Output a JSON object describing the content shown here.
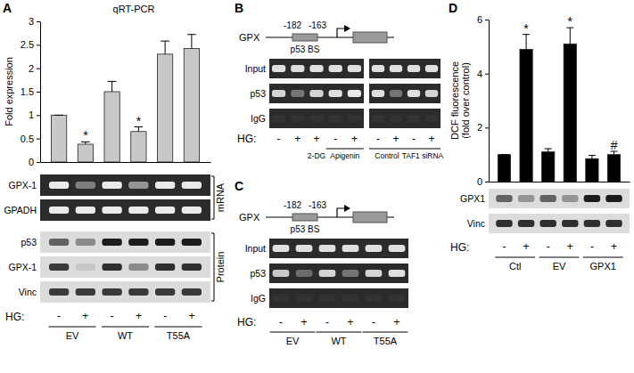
{
  "chart_data": [
    {
      "type": "bar",
      "label": "A",
      "title": "qRT-PCR",
      "y_label": "Fold expression",
      "x_label": "HG:",
      "categories": [
        "-",
        "+",
        "-",
        "+",
        "-",
        "+"
      ],
      "groups": [
        "EV",
        "WT",
        "T55A"
      ],
      "values": [
        1,
        0.38,
        1.5,
        0.65,
        2.3,
        2.42
      ],
      "errors": [
        0,
        0.05,
        0.22,
        0.1,
        0.28,
        0.3
      ],
      "annotations": [
        null,
        "*",
        null,
        "*",
        null,
        null
      ],
      "color": "#c8c8c8",
      "ylim": [
        0,
        3
      ],
      "yticks": [
        0,
        0.5,
        1,
        1.5,
        2,
        2.5,
        3
      ],
      "blots": [
        {
          "label": "mRNA",
          "rows": [
            {
              "name": "GPX-1",
              "bands": [
                0.9,
                0.4,
                0.9,
                0.5,
                0.9,
                0.9
              ]
            },
            {
              "name": "GPADH",
              "bands": [
                0.9,
                0.9,
                0.9,
                0.9,
                0.9,
                0.9
              ]
            }
          ]
        },
        {
          "label": "Protein",
          "rows": [
            {
              "name": "p53",
              "bands": [
                0.6,
                0.4,
                0.95,
                0.95,
                0.95,
                0.95
              ]
            },
            {
              "name": "GPX-1",
              "bands": [
                0.8,
                0.1,
                0.85,
                0.4,
                0.85,
                0.85
              ]
            },
            {
              "name": "Vinc",
              "bands": [
                0.8,
                0.8,
                0.8,
                0.8,
                0.8,
                0.8
              ]
            }
          ]
        }
      ]
    },
    {
      "type": "bar",
      "label": "D",
      "y_label": [
        "DCF fluorescence",
        "(fold over control)"
      ],
      "x_label": "HG:",
      "categories": [
        "-",
        "+",
        "-",
        "+",
        "-",
        "+"
      ],
      "groups": [
        "Ctl",
        "EV",
        "GPX1"
      ],
      "values": [
        1,
        4.9,
        1.1,
        5.1,
        0.85,
        1.0
      ],
      "errors": [
        0,
        0.55,
        0.12,
        0.6,
        0.12,
        0.12
      ],
      "annotations": [
        null,
        "*",
        null,
        "*",
        null,
        "#"
      ],
      "color": "#000000",
      "ylim": [
        0,
        6
      ],
      "yticks": [
        0,
        2,
        4,
        6
      ],
      "blots": [
        {
          "rows": [
            {
              "name": "GPX1",
              "bands": [
                0.6,
                0.35,
                0.6,
                0.35,
                0.95,
                0.95
              ]
            },
            {
              "name": "Vinc",
              "bands": [
                0.85,
                0.85,
                0.85,
                0.85,
                0.85,
                0.85
              ]
            }
          ]
        }
      ]
    }
  ],
  "panels": [
    {
      "label": "B",
      "gene": "GPX",
      "sites": [
        "-182",
        "-163"
      ],
      "site_label": "p53 BS",
      "x_label": "HG:",
      "rows": [
        "Input",
        "p53",
        "IgG"
      ],
      "gels": [
        {
          "lanes": [
            "-",
            "+",
            "+",
            "-",
            "+"
          ],
          "treatments": [
            {
              "text": "2-DG",
              "lanes": [
                2,
                2
              ]
            },
            {
              "text": "Apigenin",
              "lanes": [
                3,
                4
              ]
            }
          ],
          "bands": [
            [
              0.85,
              0.85,
              0.85,
              0.85,
              0.85
            ],
            [
              0.8,
              0.35,
              0.8,
              0.85,
              0.9
            ],
            [
              0.04,
              0.04,
              0.04,
              0.04,
              0.04
            ]
          ]
        },
        {
          "lanes": [
            "-",
            "+",
            "-",
            "+"
          ],
          "treatments": [
            {
              "text": "Control",
              "lanes": [
                0,
                1
              ]
            },
            {
              "text": "TAF1 siRNA",
              "lanes": [
                2,
                3
              ]
            }
          ],
          "bands": [
            [
              0.85,
              0.85,
              0.85,
              0.85
            ],
            [
              0.85,
              0.35,
              0.85,
              0.8
            ],
            [
              0.04,
              0.04,
              0.04,
              0.04
            ]
          ]
        }
      ]
    },
    {
      "label": "C",
      "gene": "GPX",
      "sites": [
        "-182",
        "-163"
      ],
      "site_label": "p53 BS",
      "x_label": "HG:",
      "rows": [
        "Input",
        "p53",
        "IgG"
      ],
      "gels": [
        {
          "lanes": [
            "-",
            "+",
            "-",
            "+",
            "-",
            "+"
          ],
          "treatments": [
            {
              "text": "EV",
              "lanes": [
                0,
                1
              ]
            },
            {
              "text": "WT",
              "lanes": [
                2,
                3
              ]
            },
            {
              "text": "T55A",
              "lanes": [
                4,
                5
              ]
            }
          ],
          "bands": [
            [
              0.85,
              0.85,
              0.85,
              0.85,
              0.85,
              0.85
            ],
            [
              0.75,
              0.3,
              0.8,
              0.35,
              0.8,
              0.85
            ],
            [
              0.04,
              0.04,
              0.04,
              0.04,
              0.04,
              0.04
            ]
          ]
        }
      ]
    }
  ]
}
